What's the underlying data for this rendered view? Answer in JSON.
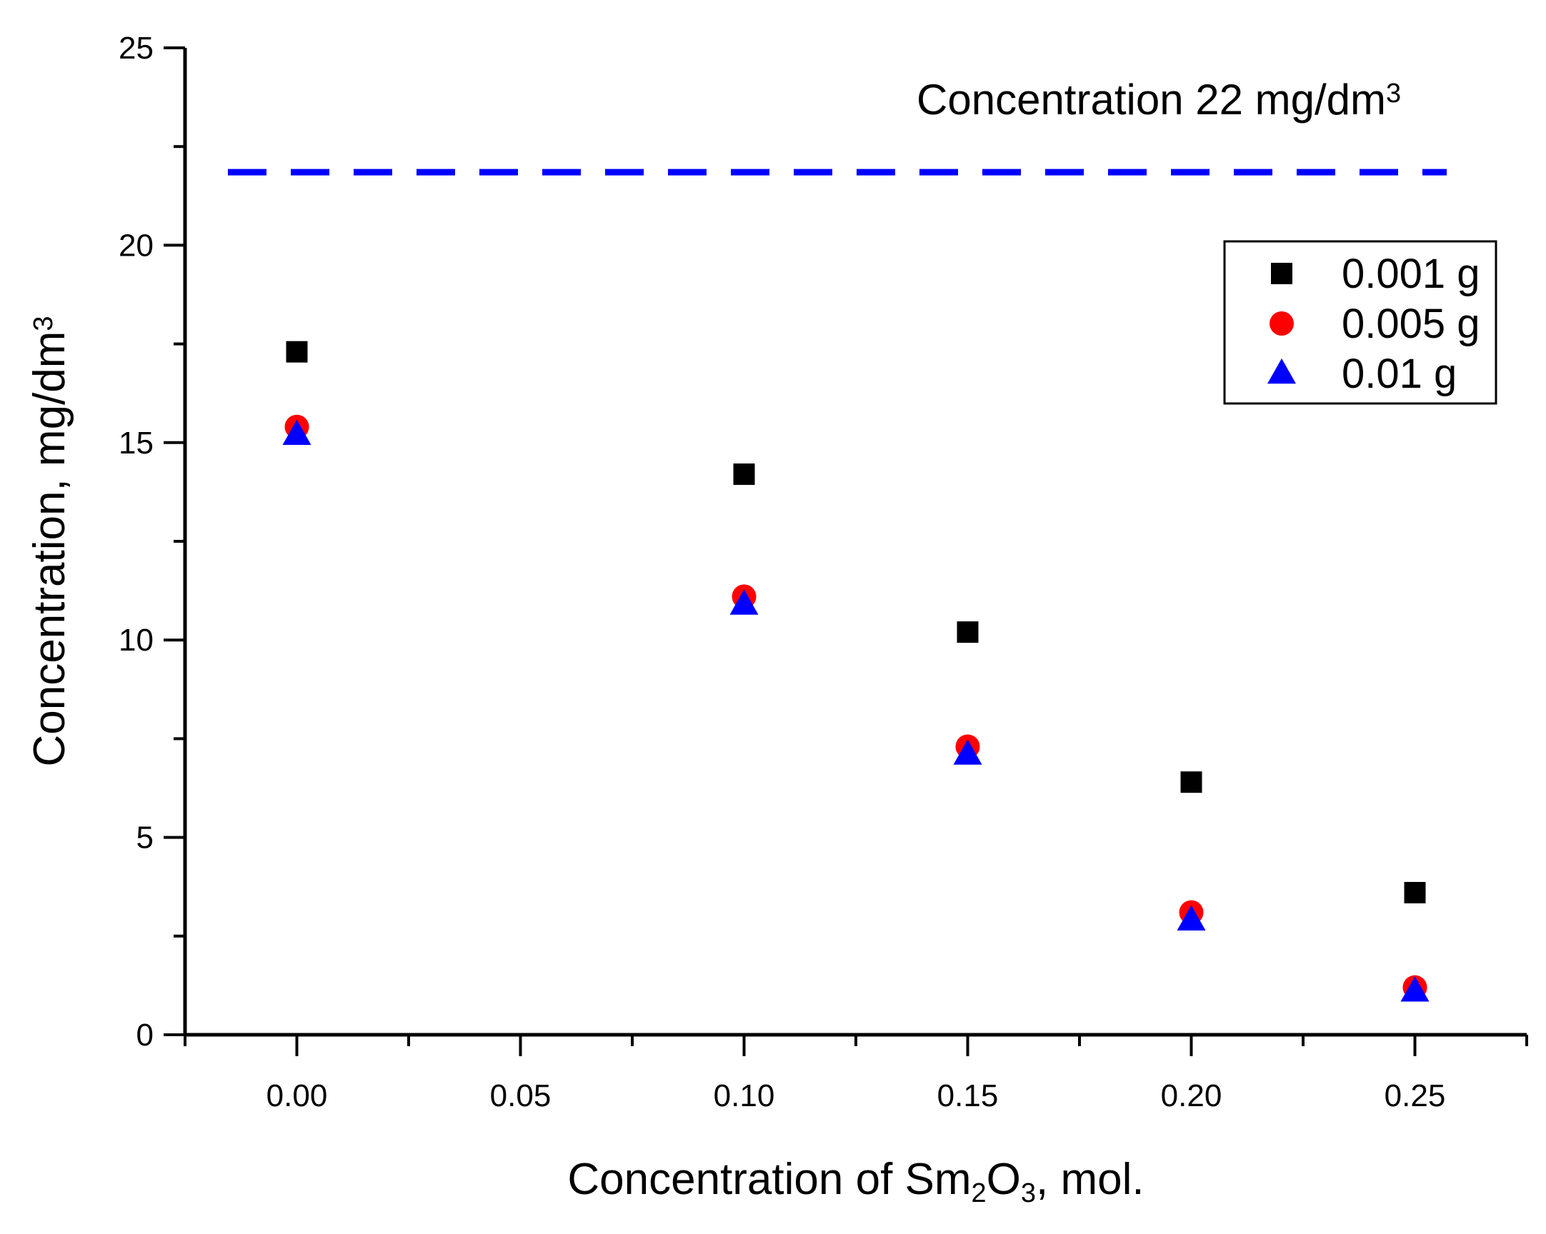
{
  "chart_data": {
    "type": "scatter",
    "title": "",
    "xlabel": {
      "parts": [
        {
          "text": "Concentration of Sm",
          "shift": "none"
        },
        {
          "text": "2",
          "shift": "sub"
        },
        {
          "text": "O",
          "shift": "none"
        },
        {
          "text": "3",
          "shift": "sub"
        },
        {
          "text": ", mol.",
          "shift": "none"
        }
      ]
    },
    "ylabel": {
      "parts": [
        {
          "text": "Concentration, mg/dm",
          "shift": "none"
        },
        {
          "text": "3",
          "shift": "super"
        }
      ]
    },
    "xlim": [
      -0.025,
      0.275
    ],
    "ylim": [
      0,
      25
    ],
    "x_major_ticks": [
      0.0,
      0.05,
      0.1,
      0.15,
      0.2,
      0.25
    ],
    "x_tick_labels": [
      "0.00",
      "0.05",
      "0.10",
      "0.15",
      "0.20",
      "0.25"
    ],
    "x_minor_ticks": [
      -0.025,
      0.025,
      0.075,
      0.125,
      0.175,
      0.225,
      0.275
    ],
    "y_major_ticks": [
      0,
      5,
      10,
      15,
      20,
      25
    ],
    "y_tick_labels": [
      "0",
      "5",
      "10",
      "15",
      "20",
      "25"
    ],
    "y_minor_ticks": [
      2.5,
      7.5,
      12.5,
      17.5,
      22.5
    ],
    "grid": false,
    "legend_position": "top-right",
    "reference_line": {
      "y": 21.85,
      "style": "dashed",
      "color": "#0000ff",
      "label_parts": [
        {
          "text": "Concentration 22 mg/dm",
          "shift": "none"
        },
        {
          "text": "3",
          "shift": "super"
        }
      ]
    },
    "series": [
      {
        "name": "0.001 g",
        "marker": "square",
        "color": "#000000",
        "x": [
          0.0,
          0.1,
          0.15,
          0.2,
          0.25
        ],
        "y": [
          17.3,
          14.2,
          10.2,
          6.4,
          3.6
        ]
      },
      {
        "name": "0.005 g",
        "marker": "circle",
        "color": "#ff0000",
        "x": [
          0.0,
          0.1,
          0.15,
          0.2,
          0.25
        ],
        "y": [
          15.4,
          11.1,
          7.3,
          3.1,
          1.2
        ]
      },
      {
        "name": "0.01 g",
        "marker": "triangle",
        "color": "#0000ff",
        "x": [
          0.0,
          0.1,
          0.15,
          0.2,
          0.25
        ],
        "y": [
          15.2,
          10.9,
          7.1,
          2.9,
          1.1
        ]
      }
    ]
  }
}
